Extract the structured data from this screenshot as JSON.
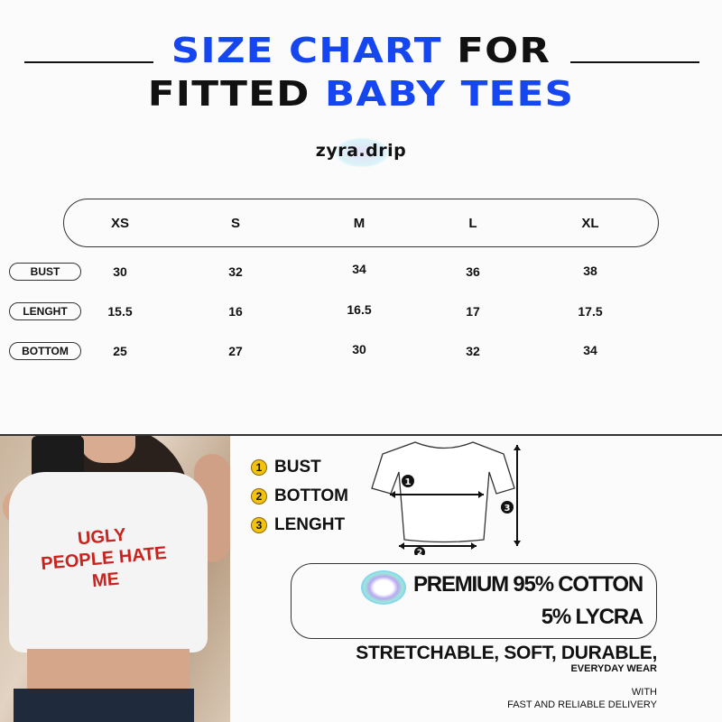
{
  "title": {
    "line1_blue": "SIZE CHART",
    "line1_black": "FOR",
    "line2_black": "FITTED",
    "line2_blue": "BABY TEES"
  },
  "brand": "zyra.drip",
  "table": {
    "sizes": [
      "XS",
      "S",
      "M",
      "L",
      "XL"
    ],
    "rows": [
      {
        "label": "BUST",
        "values": [
          "30",
          "32",
          "34",
          "36",
          "38"
        ]
      },
      {
        "label": "LENGHT",
        "values": [
          "15.5",
          "16",
          "16.5",
          "17",
          "17.5"
        ]
      },
      {
        "label": "BOTTOM",
        "values": [
          "25",
          "27",
          "30",
          "32",
          "34"
        ]
      }
    ]
  },
  "photo": {
    "shirt_text": "UGLY PEOPLE HATE ME"
  },
  "legend": [
    {
      "num": "1",
      "label": "BUST"
    },
    {
      "num": "2",
      "label": "BOTTOM"
    },
    {
      "num": "3",
      "label": "LENGHT"
    }
  ],
  "diagram": {
    "markers": [
      "1",
      "2",
      "3"
    ]
  },
  "fabric": {
    "line1": "PREMIUM 95% COTTON",
    "line2": "5% LYCRA"
  },
  "features": {
    "main": "STRETCHABLE, SOFT, DURABLE,",
    "sub": "EVERYDAY WEAR"
  },
  "delivery": {
    "line1": "WITH",
    "line2": "FAST AND RELIABLE DELIVERY"
  },
  "colors": {
    "accent_blue": "#1646f0",
    "legend_yellow": "#f4c20d",
    "shirt_text_red": "#c8231e"
  }
}
